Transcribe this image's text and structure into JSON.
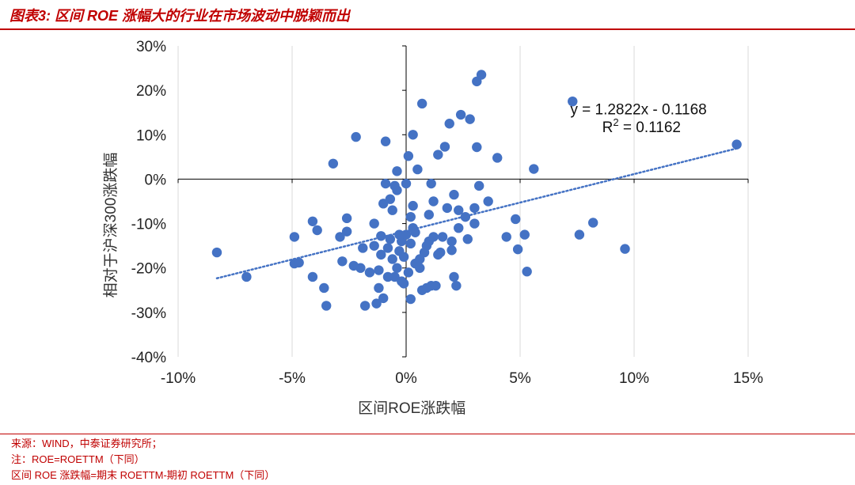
{
  "figure": {
    "title": "图表3:  区间 ROE 涨幅大的行业在市场波动中脱颖而出",
    "notes": [
      "来源：WIND，中泰证券研究所；",
      "注：ROE=ROETTM（下同）",
      "区间 ROE 涨跌幅=期末 ROETTM-期初 ROETTM（下同）"
    ]
  },
  "colors": {
    "accent": "#c00000",
    "points": "#4472c4",
    "grid": "#d9d9d9",
    "axis": "#000000"
  },
  "chart_data": {
    "type": "scatter",
    "title": "",
    "xlabel": "区间ROE涨跌幅",
    "ylabel": "相对于沪深300涨跌幅",
    "xlim": [
      -0.1,
      0.15
    ],
    "ylim": [
      -0.4,
      0.3
    ],
    "xticks": [
      -0.1,
      -0.05,
      0,
      0.05,
      0.1,
      0.15
    ],
    "xtick_labels": [
      "-10%",
      "-5%",
      "0%",
      "5%",
      "10%",
      "15%"
    ],
    "yticks": [
      0.3,
      0.2,
      0.1,
      0,
      -0.1,
      -0.2,
      -0.3,
      -0.4
    ],
    "ytick_labels": [
      "30%",
      "20%",
      "10%",
      "0%",
      "-10%",
      "-20%",
      "-30%",
      "-40%"
    ],
    "grid": {
      "vertical": true,
      "horizontal": false
    },
    "trendline": {
      "type": "linear",
      "slope": 1.2822,
      "intercept": -0.1168,
      "x_range": [
        -0.083,
        0.145
      ],
      "equation_label": "y = 1.2822x - 0.1168",
      "r2_prefix": "R",
      "r2_sup": "2",
      "r2_value": " = 0.1162"
    },
    "series": [
      {
        "points": [
          [
            -0.083,
            -0.165
          ],
          [
            -0.07,
            -0.22
          ],
          [
            -0.049,
            -0.19
          ],
          [
            -0.049,
            -0.13
          ],
          [
            -0.047,
            -0.188
          ],
          [
            -0.041,
            -0.22
          ],
          [
            -0.041,
            -0.095
          ],
          [
            -0.039,
            -0.115
          ],
          [
            -0.036,
            -0.245
          ],
          [
            -0.035,
            -0.285
          ],
          [
            -0.032,
            0.035
          ],
          [
            -0.029,
            -0.13
          ],
          [
            -0.028,
            -0.185
          ],
          [
            -0.026,
            -0.088
          ],
          [
            -0.026,
            -0.118
          ],
          [
            -0.023,
            -0.195
          ],
          [
            -0.022,
            0.095
          ],
          [
            -0.02,
            -0.2
          ],
          [
            -0.019,
            -0.155
          ],
          [
            -0.018,
            -0.285
          ],
          [
            -0.016,
            -0.21
          ],
          [
            -0.014,
            -0.1
          ],
          [
            -0.014,
            -0.15
          ],
          [
            -0.013,
            -0.28
          ],
          [
            -0.012,
            -0.245
          ],
          [
            -0.012,
            -0.205
          ],
          [
            -0.011,
            -0.128
          ],
          [
            -0.011,
            -0.17
          ],
          [
            -0.01,
            -0.055
          ],
          [
            -0.01,
            -0.268
          ],
          [
            -0.009,
            -0.01
          ],
          [
            -0.009,
            0.085
          ],
          [
            -0.008,
            -0.155
          ],
          [
            -0.008,
            -0.22
          ],
          [
            -0.007,
            -0.045
          ],
          [
            -0.007,
            -0.135
          ],
          [
            -0.006,
            -0.07
          ],
          [
            -0.006,
            -0.18
          ],
          [
            -0.005,
            -0.015
          ],
          [
            -0.005,
            -0.22
          ],
          [
            -0.004,
            0.018
          ],
          [
            -0.004,
            -0.2
          ],
          [
            -0.004,
            -0.025
          ],
          [
            -0.003,
            -0.125
          ],
          [
            -0.003,
            -0.162
          ],
          [
            -0.002,
            -0.23
          ],
          [
            -0.002,
            -0.14
          ],
          [
            -0.001,
            -0.175
          ],
          [
            -0.001,
            -0.235
          ],
          [
            0.0,
            -0.125
          ],
          [
            0.0,
            -0.01
          ],
          [
            0.001,
            -0.21
          ],
          [
            0.001,
            0.052
          ],
          [
            0.002,
            -0.085
          ],
          [
            0.002,
            -0.145
          ],
          [
            0.002,
            -0.27
          ],
          [
            0.003,
            -0.06
          ],
          [
            0.003,
            -0.11
          ],
          [
            0.003,
            0.1
          ],
          [
            0.004,
            -0.19
          ],
          [
            0.004,
            -0.12
          ],
          [
            0.005,
            0.022
          ],
          [
            0.006,
            -0.18
          ],
          [
            0.006,
            -0.2
          ],
          [
            0.007,
            -0.25
          ],
          [
            0.007,
            0.17
          ],
          [
            0.008,
            -0.165
          ],
          [
            0.009,
            -0.15
          ],
          [
            0.009,
            -0.245
          ],
          [
            0.01,
            -0.14
          ],
          [
            0.01,
            -0.08
          ],
          [
            0.011,
            -0.01
          ],
          [
            0.011,
            -0.24
          ],
          [
            0.012,
            -0.13
          ],
          [
            0.012,
            -0.05
          ],
          [
            0.013,
            -0.24
          ],
          [
            0.014,
            0.055
          ],
          [
            0.014,
            -0.17
          ],
          [
            0.015,
            -0.165
          ],
          [
            0.016,
            -0.13
          ],
          [
            0.017,
            0.073
          ],
          [
            0.018,
            -0.065
          ],
          [
            0.019,
            0.125
          ],
          [
            0.02,
            -0.16
          ],
          [
            0.02,
            -0.14
          ],
          [
            0.021,
            -0.035
          ],
          [
            0.021,
            -0.22
          ],
          [
            0.022,
            -0.24
          ],
          [
            0.023,
            -0.07
          ],
          [
            0.023,
            -0.11
          ],
          [
            0.024,
            0.145
          ],
          [
            0.026,
            -0.085
          ],
          [
            0.027,
            -0.135
          ],
          [
            0.028,
            0.135
          ],
          [
            0.03,
            -0.1
          ],
          [
            0.03,
            -0.065
          ],
          [
            0.031,
            0.072
          ],
          [
            0.031,
            0.22
          ],
          [
            0.032,
            -0.015
          ],
          [
            0.033,
            0.235
          ],
          [
            0.036,
            -0.05
          ],
          [
            0.04,
            0.048
          ],
          [
            0.044,
            -0.13
          ],
          [
            0.048,
            -0.09
          ],
          [
            0.049,
            -0.158
          ],
          [
            0.052,
            -0.125
          ],
          [
            0.053,
            -0.208
          ],
          [
            0.056,
            0.023
          ],
          [
            0.073,
            0.175
          ],
          [
            0.076,
            -0.125
          ],
          [
            0.082,
            -0.098
          ],
          [
            0.096,
            -0.157
          ],
          [
            0.145,
            0.078
          ]
        ]
      }
    ]
  }
}
